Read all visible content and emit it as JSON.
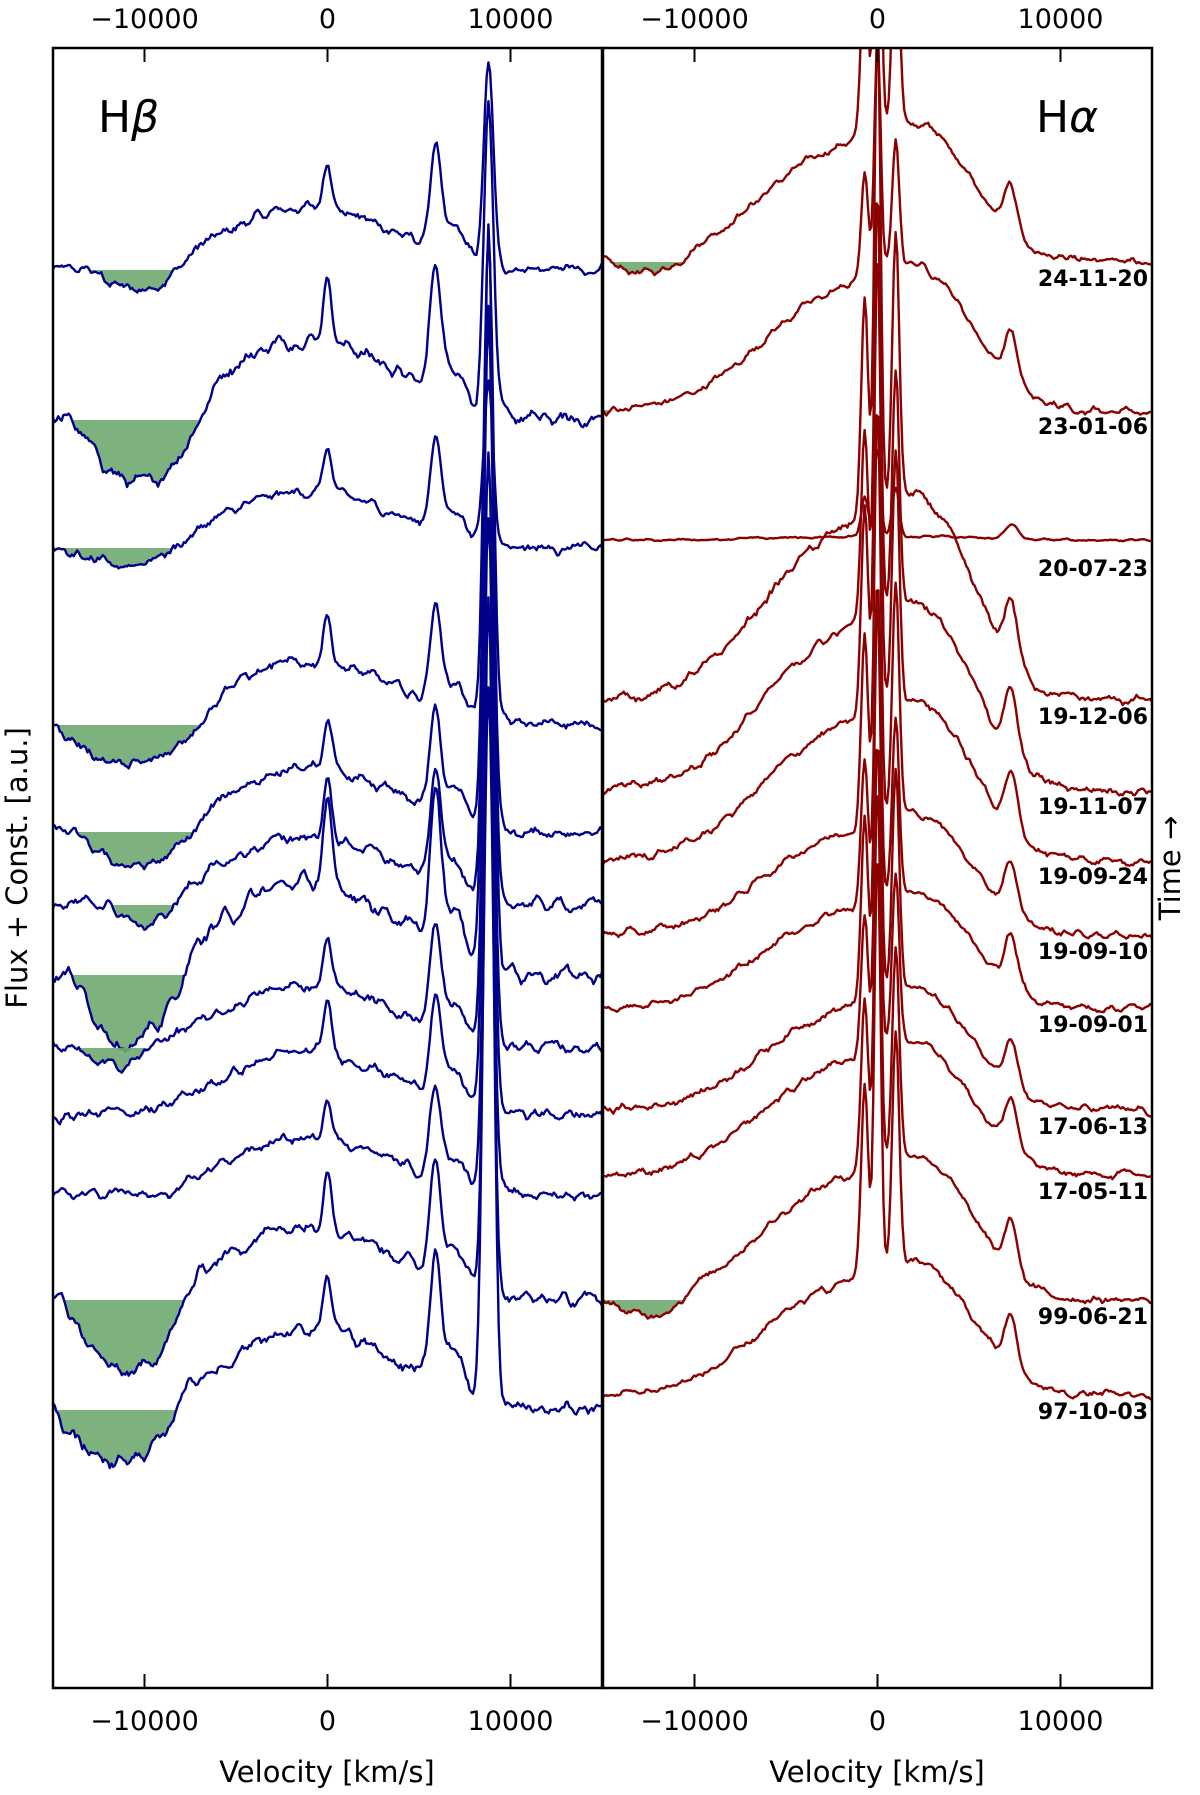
{
  "chart_data": {
    "type": "line",
    "ylabel": "Flux + Const. [a.u.]",
    "right_label": "Time →",
    "xlim": [
      -15000,
      15000
    ],
    "panels": [
      {
        "label_main": "H",
        "label_greek": "β",
        "xlabel": "Velocity [km/s]",
        "color": "#00008b",
        "xticks": [
          -10000,
          0,
          10000
        ],
        "xtick_labels": [
          "−10000",
          "0",
          "10000"
        ]
      },
      {
        "label_main": "H",
        "label_greek": "α",
        "xlabel": "Velocity [km/s]",
        "color": "#8b0000",
        "xticks": [
          -10000,
          0,
          10000
        ],
        "xtick_labels": [
          "−10000",
          "0",
          "10000"
        ]
      }
    ],
    "shade_color": "#6fa86f",
    "series": [
      {
        "date": "24-11-20"
      },
      {
        "date": "23-01-06"
      },
      {
        "date": "20-07-23"
      },
      {
        "date": "19-12-06"
      },
      {
        "date": "19-11-07"
      },
      {
        "date": "19-09-24"
      },
      {
        "date": "19-09-10"
      },
      {
        "date": "19-09-01"
      },
      {
        "date": "17-06-13"
      },
      {
        "date": "17-05-11"
      },
      {
        "date": "99-06-21"
      },
      {
        "date": "97-10-03"
      }
    ]
  }
}
